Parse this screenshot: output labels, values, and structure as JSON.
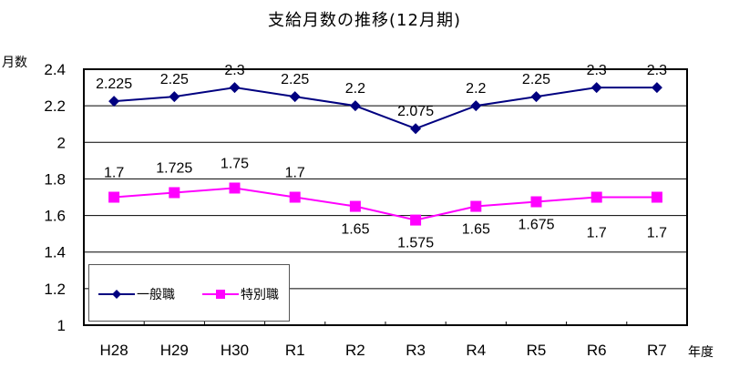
{
  "chart_data": {
    "type": "line",
    "title": "支給月数の推移(12月期)",
    "xlabel": "年度",
    "ylabel": "月数",
    "categories": [
      "H28",
      "H29",
      "H30",
      "R1",
      "R2",
      "R3",
      "R4",
      "R5",
      "R6",
      "R7"
    ],
    "series": [
      {
        "name": "一般職",
        "color": "#000080",
        "marker": "diamond",
        "values": [
          2.225,
          2.25,
          2.3,
          2.25,
          2.2,
          2.075,
          2.2,
          2.25,
          2.3,
          2.3
        ],
        "labels": [
          "2.225",
          "2.25",
          "2.3",
          "2.25",
          "2.2",
          "2.075",
          "2.2",
          "2.25",
          "2.3",
          "2.3"
        ]
      },
      {
        "name": "特別職",
        "color": "#FF00FF",
        "marker": "square",
        "values": [
          1.7,
          1.725,
          1.75,
          1.7,
          1.65,
          1.575,
          1.65,
          1.675,
          1.7,
          1.7
        ],
        "labels": [
          "1.7",
          "1.725",
          "1.75",
          "1.7",
          "1.65",
          "1.575",
          "1.65",
          "1.675",
          "1.7",
          "1.7"
        ]
      }
    ],
    "ylim": [
      1,
      2.4
    ],
    "yticks": [
      "1",
      "1.2",
      "1.4",
      "1.6",
      "1.8",
      "2",
      "2.2",
      "2.4"
    ],
    "grid": true,
    "legend_position": "bottom-left inside"
  },
  "legend": {
    "items": [
      "一般職",
      "特別職"
    ]
  }
}
